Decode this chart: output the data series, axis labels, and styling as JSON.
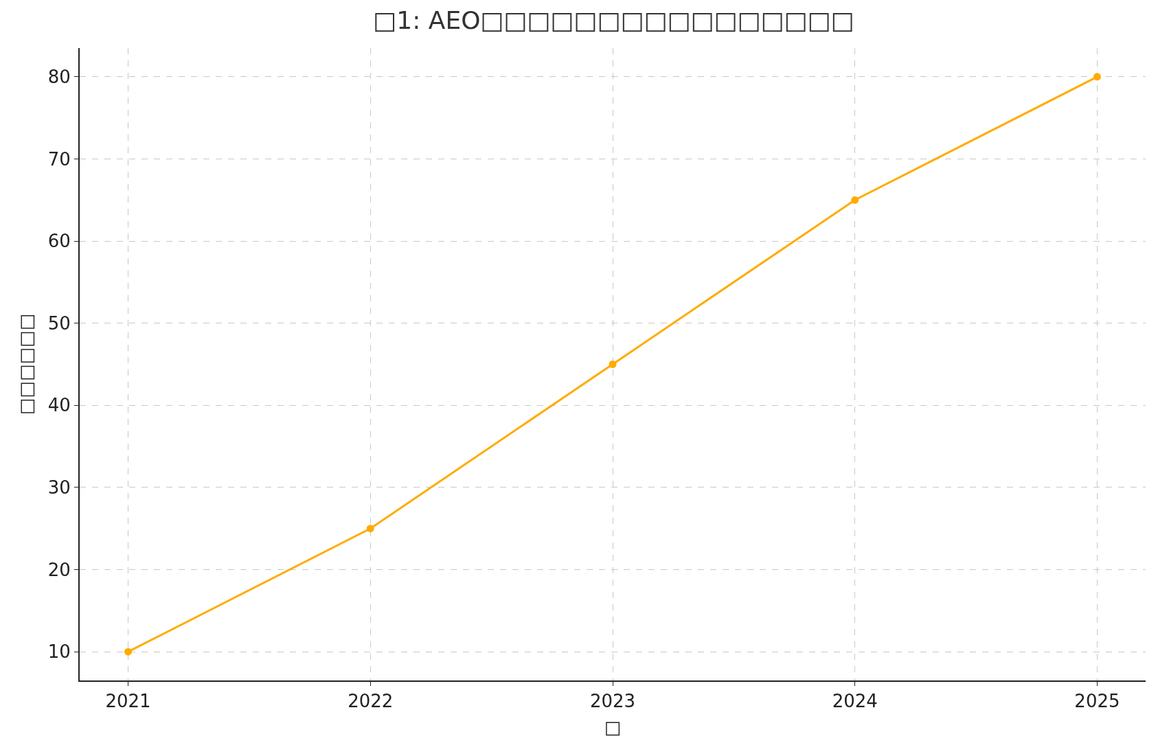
{
  "chart_data": {
    "type": "line",
    "title": "□1: AEO□□□□□□□□□□□□□□□□",
    "xlabel": "□",
    "ylabel": "□□□□□□",
    "x": [
      2021,
      2022,
      2023,
      2024,
      2025
    ],
    "series": [
      {
        "color": "#ffab00",
        "values": [
          10,
          25,
          45,
          65,
          80
        ]
      }
    ],
    "xlim": [
      2020.8,
      2025.2
    ],
    "xticks": [
      2021,
      2022,
      2023,
      2024,
      2025
    ],
    "ylim": [
      6.5,
      83.5
    ],
    "yticks": [
      10,
      20,
      30,
      40,
      50,
      60,
      70,
      80
    ],
    "grid": true,
    "marker": "circle",
    "line_style": "solid",
    "legend": false
  }
}
